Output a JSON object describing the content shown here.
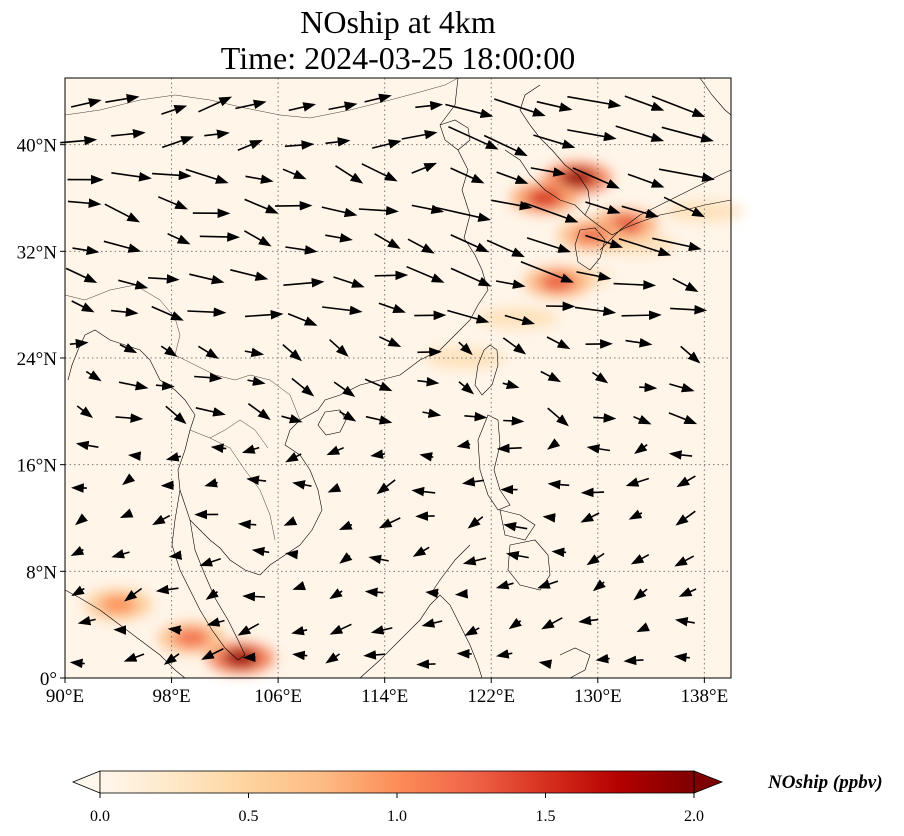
{
  "title": {
    "line1": "NOship at 4km",
    "line2": "Time: 2024-03-25 18:00:00"
  },
  "map": {
    "lon_range": [
      90,
      140
    ],
    "lat_range": [
      0,
      45
    ],
    "x_ticks": [
      "90°E",
      "98°E",
      "106°E",
      "114°E",
      "122°E",
      "130°E",
      "138°E"
    ],
    "x_tick_values": [
      90,
      98,
      106,
      114,
      122,
      130,
      138
    ],
    "y_ticks": [
      "0°",
      "8°N",
      "16°N",
      "24°N",
      "32°N",
      "40°N"
    ],
    "y_tick_values": [
      0,
      8,
      16,
      24,
      32,
      40
    ],
    "gridlines": true,
    "hotspots": [
      {
        "lon": 128.5,
        "lat": 37.5,
        "level": 1.9
      },
      {
        "lon": 126.0,
        "lat": 36.0,
        "level": 1.5
      },
      {
        "lon": 132.0,
        "lat": 34.0,
        "level": 1.4
      },
      {
        "lon": 129.5,
        "lat": 33.2,
        "level": 1.2
      },
      {
        "lon": 127.0,
        "lat": 29.7,
        "level": 1.3
      },
      {
        "lon": 103.2,
        "lat": 1.5,
        "level": 1.9
      },
      {
        "lon": 94.0,
        "lat": 5.5,
        "level": 1.0
      },
      {
        "lon": 99.5,
        "lat": 3.0,
        "level": 1.2
      }
    ]
  },
  "colorbar": {
    "label": "NOship (ppbv)",
    "min": 0.0,
    "max": 2.0,
    "ticks": [
      "0.0",
      "0.5",
      "1.0",
      "1.5",
      "2.0"
    ],
    "tick_values": [
      0.0,
      0.5,
      1.0,
      1.5,
      2.0
    ],
    "colormap": [
      "#fff7ec",
      "#fee8c8",
      "#fdd49e",
      "#fdbb84",
      "#fc8d59",
      "#ef6548",
      "#d7301f",
      "#b30000",
      "#7f0000"
    ]
  },
  "colors": {
    "map_background": "#fff5e9",
    "coastline": "#000000",
    "gridline": "#7a7a7a",
    "arrow": "#000000"
  }
}
